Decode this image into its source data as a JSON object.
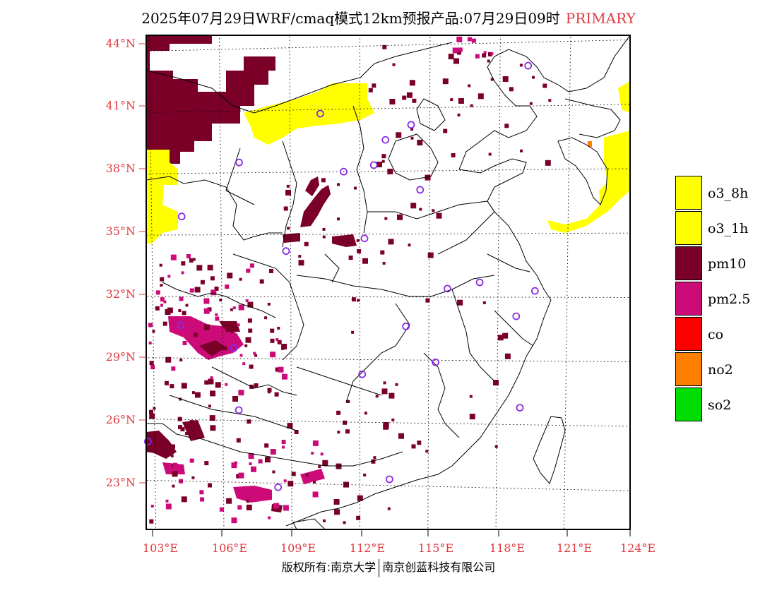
{
  "title": {
    "main": "2025年07月29日WRF/cmaq模式12km预报产品:07月29日09时",
    "tag": "PRIMARY"
  },
  "colors": {
    "o3_8h": "#ffff00",
    "o3_1h": "#ffff00",
    "pm10": "#7a0028",
    "pm25": "#cc0a78",
    "co": "#ff0000",
    "no2": "#ff7f00",
    "so2": "#00dd00",
    "label_red": "#e0393e",
    "station": "#8a2be2"
  },
  "legend": [
    {
      "label": "o3_8h",
      "color": "#ffff00"
    },
    {
      "label": "o3_1h",
      "color": "#ffff00"
    },
    {
      "label": "pm10",
      "color": "#7a0028"
    },
    {
      "label": "pm2.5",
      "color": "#cc0a78"
    },
    {
      "label": "co",
      "color": "#ff0000"
    },
    {
      "label": "no2",
      "color": "#ff7f00"
    },
    {
      "label": "so2",
      "color": "#00dd00"
    }
  ],
  "axes": {
    "lat_labels": [
      "44°N",
      "41°N",
      "38°N",
      "35°N",
      "32°N",
      "29°N",
      "26°N",
      "23°N"
    ],
    "lon_labels": [
      "103°E",
      "106°E",
      "109°E",
      "112°E",
      "115°E",
      "118°E",
      "121°E",
      "124°E"
    ]
  },
  "stations": [
    {
      "lon": 119.2,
      "lat": 42.9
    },
    {
      "lon": 110.3,
      "lat": 40.8
    },
    {
      "lon": 114.2,
      "lat": 40.2
    },
    {
      "lon": 113.1,
      "lat": 39.5
    },
    {
      "lon": 106.8,
      "lat": 38.5
    },
    {
      "lon": 111.3,
      "lat": 38.0
    },
    {
      "lon": 112.6,
      "lat": 38.3
    },
    {
      "lon": 114.6,
      "lat": 37.1
    },
    {
      "lon": 104.3,
      "lat": 35.9
    },
    {
      "lon": 108.8,
      "lat": 34.2
    },
    {
      "lon": 112.2,
      "lat": 34.8
    },
    {
      "lon": 117.2,
      "lat": 32.7
    },
    {
      "lon": 115.8,
      "lat": 32.4
    },
    {
      "lon": 119.6,
      "lat": 32.3
    },
    {
      "lon": 114.0,
      "lat": 30.6
    },
    {
      "lon": 118.8,
      "lat": 31.1
    },
    {
      "lon": 104.2,
      "lat": 30.6
    },
    {
      "lon": 106.5,
      "lat": 29.5
    },
    {
      "lon": 112.1,
      "lat": 28.3
    },
    {
      "lon": 115.3,
      "lat": 28.9
    },
    {
      "lon": 106.7,
      "lat": 26.5
    },
    {
      "lon": 119.0,
      "lat": 26.8
    },
    {
      "lon": 102.7,
      "lat": 24.9
    },
    {
      "lon": 108.4,
      "lat": 22.8
    },
    {
      "lon": 113.3,
      "lat": 23.3
    }
  ],
  "footer": {
    "left": "版权所有:南京大学",
    "right": "南京创蓝科技有限公司"
  }
}
